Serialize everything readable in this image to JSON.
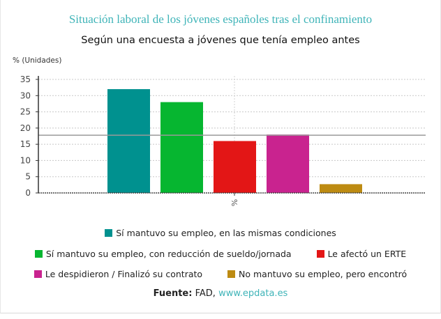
{
  "chart_data": {
    "type": "bar",
    "title": "Situación laboral de los jóvenes españoles tras el confinamiento",
    "subtitle": "Según una encuesta a jóvenes que tenía empleo antes",
    "ylabel": "% (Unidades)",
    "xlabel": "",
    "categories": [
      "%"
    ],
    "ylim": [
      0,
      35
    ],
    "yticks": [
      0,
      5,
      10,
      15,
      20,
      25,
      30,
      35
    ],
    "grid": true,
    "reference_line": 17.8,
    "legend_position": "bottom",
    "series": [
      {
        "name": "Sí mantuvo su empleo, en las mismas condiciones",
        "values": [
          32
        ],
        "color": "#00918f"
      },
      {
        "name": "Sí mantuvo su empleo, con reducción de sueldo/jornada",
        "values": [
          28
        ],
        "color": "#06b630"
      },
      {
        "name": "Le afectó un ERTE",
        "values": [
          16
        ],
        "color": "#e31616"
      },
      {
        "name": "Le despidieron / Finalizó su contrato",
        "values": [
          18
        ],
        "color": "#c9238f"
      },
      {
        "name": "No mantuvo su empleo, pero encontró",
        "values": [
          2.7
        ],
        "color": "#bd8b12"
      }
    ]
  },
  "source": {
    "label": "Fuente:",
    "text": "FAD,",
    "link": "www.epdata.es"
  }
}
